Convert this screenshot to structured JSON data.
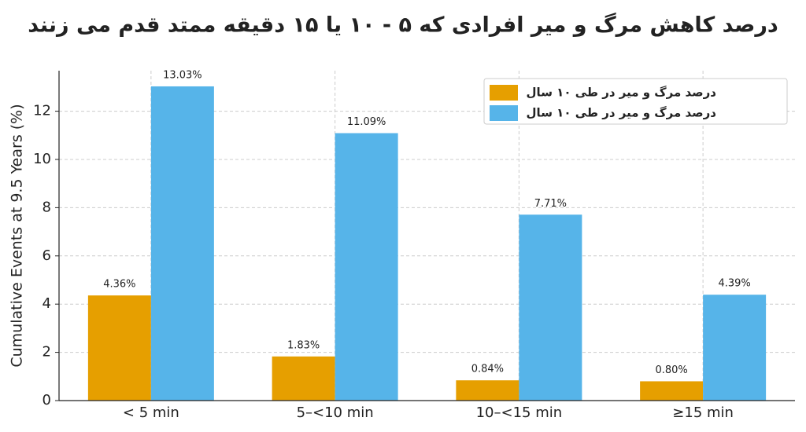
{
  "chart_data": {
    "type": "bar",
    "title": "درصد کاهش مرگ و میر افرادی که ۵ - ۱۰ یا ۱۵ دقیقه ممتد قدم می زنند",
    "ylabel": "Cumulative Events at 9.5 Years (%)",
    "categories": [
      "< 5 min",
      "5–<10 min",
      "10–<15 min",
      "≥15 min"
    ],
    "series": [
      {
        "name": "درصد مرگ و میر در طی ۱۰ سال",
        "color": "#E69F00",
        "values": [
          4.36,
          1.83,
          0.84,
          0.8
        ],
        "value_labels": [
          "4.36%",
          "1.83%",
          "0.84%",
          "0.80%"
        ]
      },
      {
        "name": "درصد مرگ و میر در طی ۱۰ سال",
        "color": "#56B4E9",
        "values": [
          13.03,
          11.09,
          7.71,
          4.39
        ],
        "value_labels": [
          "13.03%",
          "11.09%",
          "7.71%",
          "4.39%"
        ]
      }
    ],
    "ylim": [
      0,
      13.68
    ],
    "yticks": [
      0,
      2,
      4,
      6,
      8,
      10,
      12
    ],
    "grid": true,
    "legend": "upper right"
  }
}
